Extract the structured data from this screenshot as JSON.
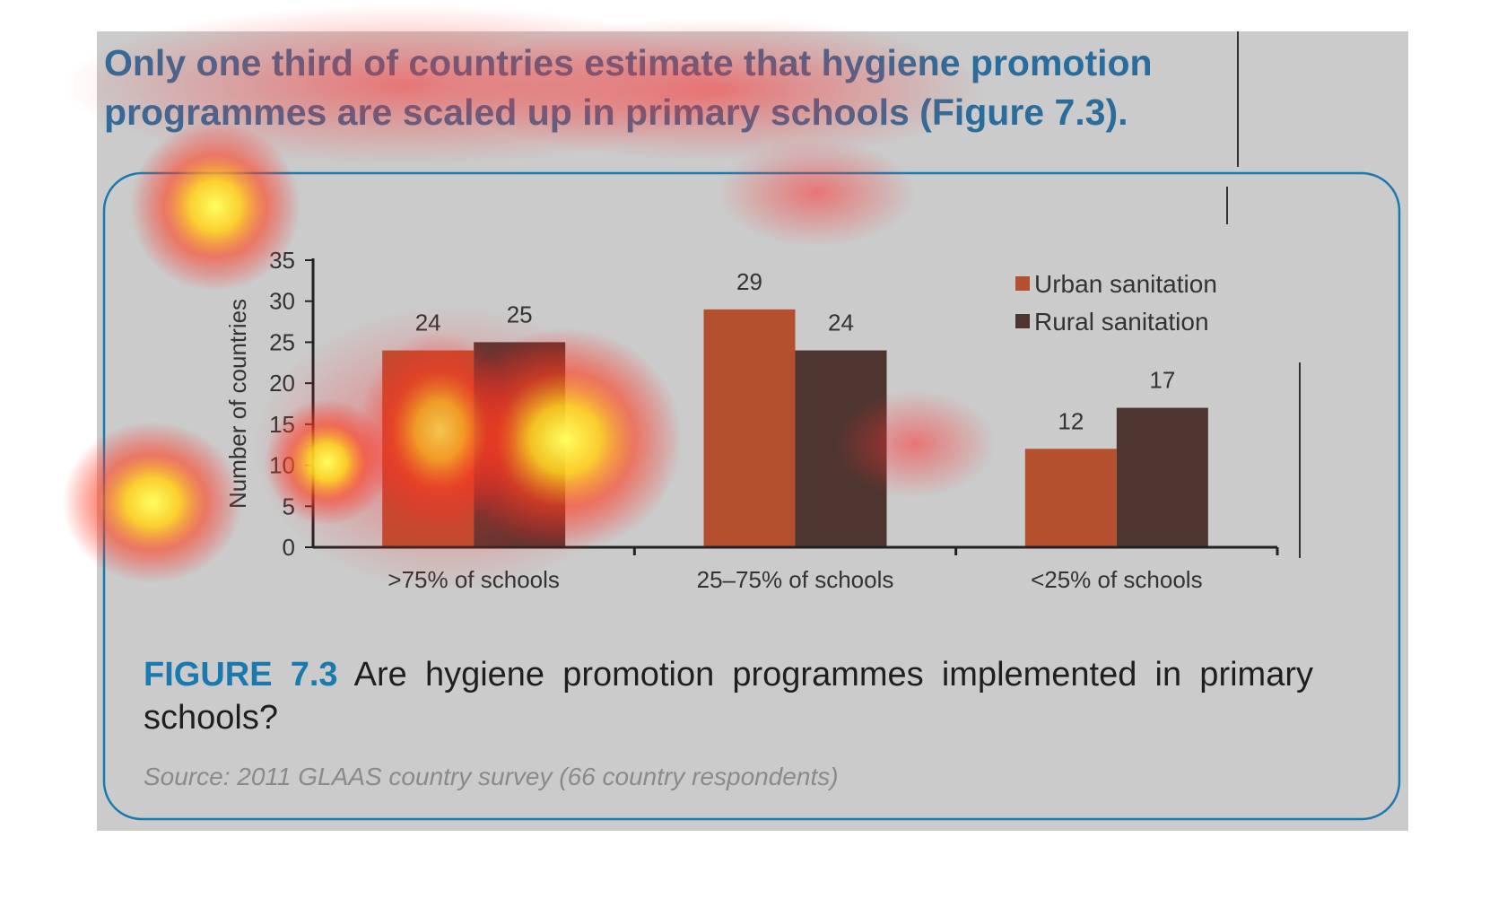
{
  "heading": {
    "lines": [
      "Only one third of countries estimate that hygiene promotion",
      "programmes are scaled up in primary schools (Figure 7.3)."
    ]
  },
  "chart_data": {
    "type": "bar",
    "ylabel": "Number of countries",
    "categories": [
      ">75% of schools",
      "25–75% of schools",
      "<25% of schools"
    ],
    "series": [
      {
        "name": "Urban sanitation",
        "color": "#b5502f",
        "values": [
          24,
          29,
          12
        ]
      },
      {
        "name": "Rural sanitation",
        "color": "#4e3530",
        "values": [
          25,
          24,
          17
        ]
      }
    ],
    "ylim": [
      0,
      35
    ],
    "yticks": [
      0,
      5,
      10,
      15,
      20,
      25,
      30,
      35
    ],
    "legend": "top-right"
  },
  "caption": {
    "label": "FIGURE 7.3",
    "text": "Are hygiene promotion programmes implemented in primary schools?",
    "source": "Source: 2011 GLAAS country survey (66 country respondents)"
  }
}
